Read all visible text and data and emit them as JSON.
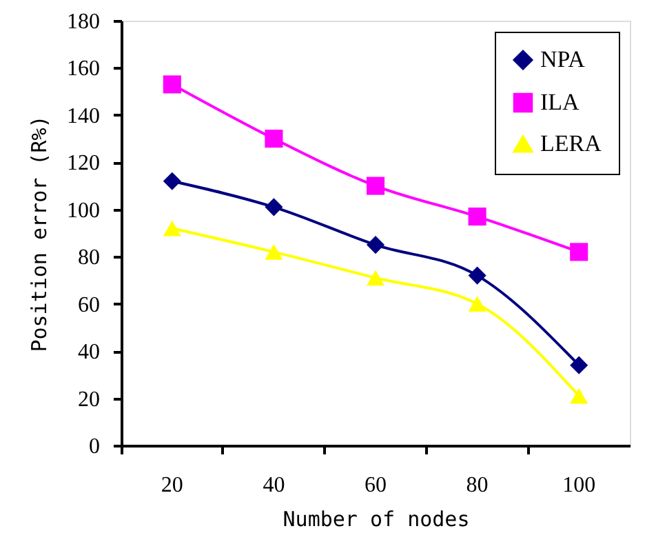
{
  "chart_data": {
    "type": "line",
    "xlabel": "Number of nodes",
    "ylabel": "Position error (R%)",
    "categories": [
      "20",
      "40",
      "60",
      "80",
      "100"
    ],
    "series": [
      {
        "name": "NPA",
        "color": "#000080",
        "marker": "diamond",
        "values": [
          112,
          101,
          85,
          72,
          34
        ]
      },
      {
        "name": "ILA",
        "color": "#ff00ff",
        "marker": "square",
        "values": [
          153,
          130,
          110,
          97,
          82
        ]
      },
      {
        "name": "LERA",
        "color": "#ffff00",
        "marker": "triangle",
        "values": [
          92,
          82,
          71,
          60,
          21
        ]
      }
    ],
    "ylim": [
      0,
      180
    ],
    "yticks": [
      0,
      20,
      40,
      60,
      80,
      100,
      120,
      140,
      160,
      180
    ],
    "grid": false,
    "legend": "top right",
    "line_style": "solid"
  }
}
